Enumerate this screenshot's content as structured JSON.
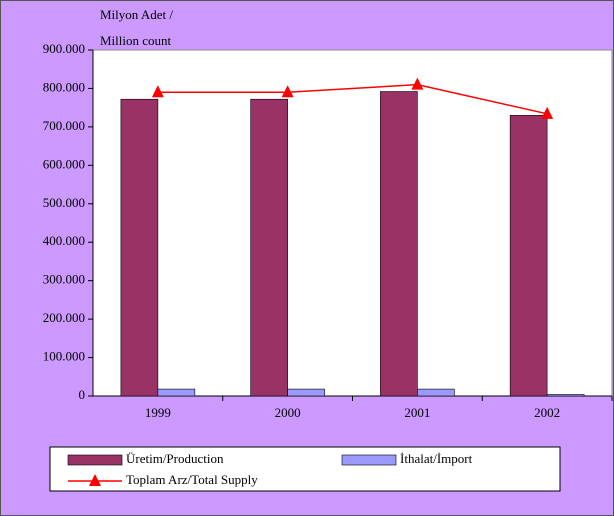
{
  "chart_data": {
    "type": "bar",
    "ylabel": [
      "Milyon Adet /",
      "Million count"
    ],
    "categories": [
      "1999",
      "2000",
      "2001",
      "2002"
    ],
    "series": [
      {
        "name": "Üretim/Production",
        "color": "#993366",
        "values": [
          772000,
          772000,
          792000,
          730000
        ]
      },
      {
        "name": "İthalat/İmport",
        "color": "#9999ff",
        "values": [
          18000,
          18000,
          18000,
          4000
        ]
      },
      {
        "name": "Toplam Arz/Total Supply",
        "color": "#ff0000",
        "type": "line",
        "values": [
          790000,
          790000,
          810000,
          734000
        ]
      }
    ],
    "ylim": [
      0,
      900000
    ],
    "yticks": [
      0,
      {
        "value": 100000,
        "label": "100.000"
      },
      {
        "value": 200000,
        "label": "200.000"
      },
      {
        "value": 300000,
        "label": "300.000"
      },
      {
        "value": 400000,
        "label": "400.000"
      },
      {
        "value": 500000,
        "label": "500.000"
      },
      {
        "value": 600000,
        "label": "600.000"
      },
      {
        "value": 700000,
        "label": "700.000"
      },
      {
        "value": 800000,
        "label": "800.000"
      },
      {
        "value": 900000,
        "label": "900.000"
      }
    ],
    "grid": false,
    "legend": "bottom"
  }
}
